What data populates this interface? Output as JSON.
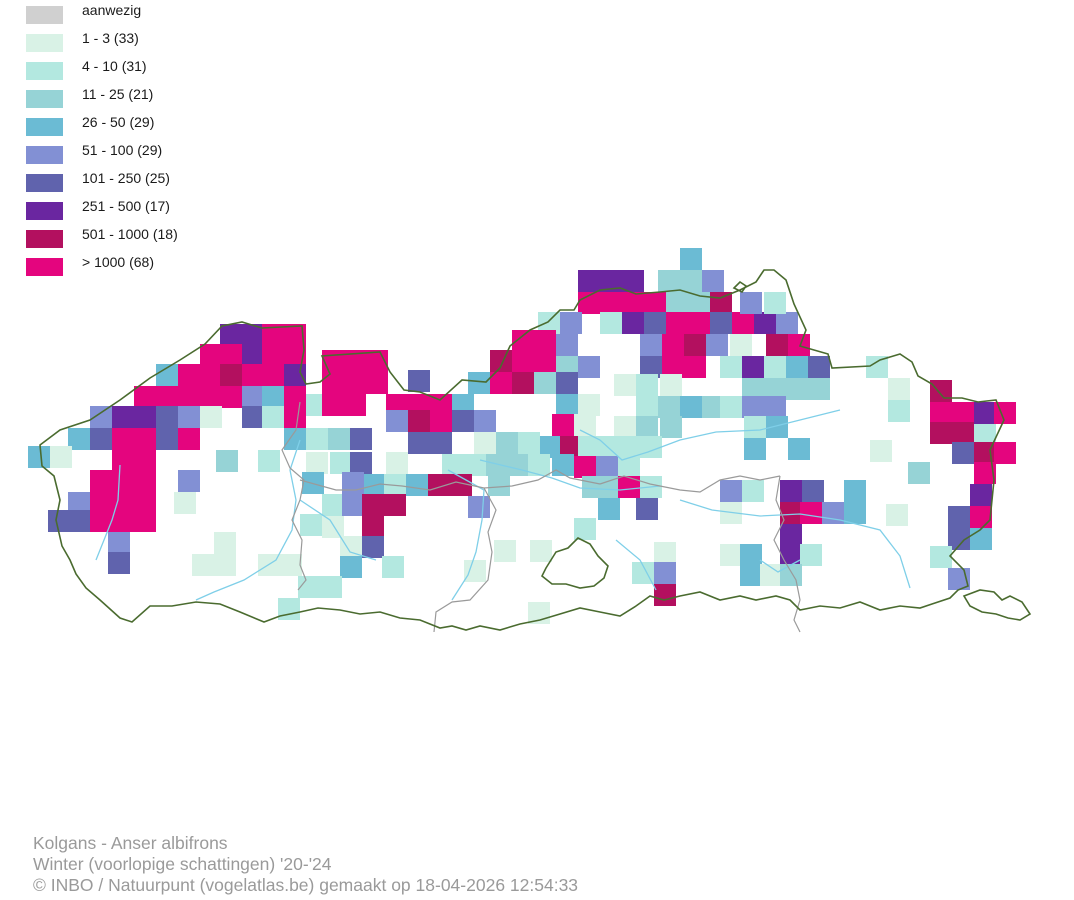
{
  "legend": {
    "items": [
      {
        "label": "aanwezig",
        "color": "#d0d0d0"
      },
      {
        "label": "1 - 3 (33)",
        "color": "#d9f2e6"
      },
      {
        "label": "4 - 10 (31)",
        "color": "#b3e8e0"
      },
      {
        "label": "11 - 25 (21)",
        "color": "#96d3d6"
      },
      {
        "label": "26 - 50 (29)",
        "color": "#6bbbd4"
      },
      {
        "label": "51 - 100 (29)",
        "color": "#8290d4"
      },
      {
        "label": "101 - 250 (25)",
        "color": "#6063ad"
      },
      {
        "label": "251 - 500 (17)",
        "color": "#6a26a0"
      },
      {
        "label": "501 - 1000 (18)",
        "color": "#b3105f"
      },
      {
        "label": "> 1000 (68)",
        "color": "#e4057e"
      }
    ]
  },
  "map": {
    "region": "Vlaanderen",
    "boundary_color": "#4a6b2f",
    "province_border_color": "#9a9a9a",
    "river_color": "#7fcfe8"
  },
  "caption": {
    "species": "Kolgans - Anser albifrons",
    "period": "Winter (voorlopige schattingen) '20-'24",
    "credits": "© INBO / Natuurpunt (vogelatlas.be) gemaakt op 18-04-2026 12:54:33"
  }
}
